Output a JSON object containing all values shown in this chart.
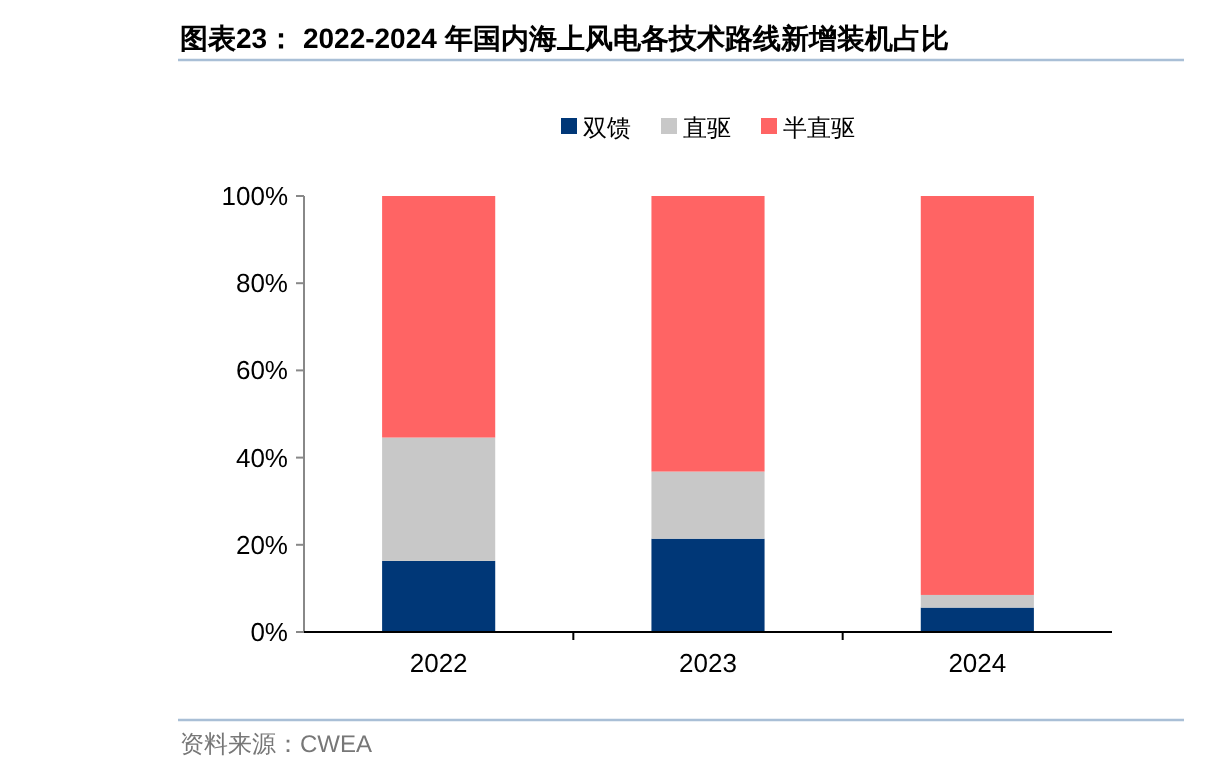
{
  "chart_data": {
    "type": "bar",
    "title": "图表23： 2022-2024 年国内海上风电各技术路线新增装机占比",
    "categories": [
      "2022",
      "2023",
      "2024"
    ],
    "stacked": true,
    "legend": "top",
    "series": [
      {
        "name": "双馈",
        "color": "#003777",
        "values": [
          16.3,
          21.4,
          5.6
        ]
      },
      {
        "name": "直驱",
        "color": "#c8c8c8",
        "values": [
          28.3,
          15.4,
          2.9
        ]
      },
      {
        "name": "半直驱",
        "color": "#ff6464",
        "values": [
          55.4,
          63.2,
          91.5
        ]
      }
    ],
    "ylim": [
      0,
      100
    ],
    "yticks": [
      {
        "value": 0,
        "label": "0%"
      },
      {
        "value": 20,
        "label": "20%"
      },
      {
        "value": 40,
        "label": "40%"
      },
      {
        "value": 60,
        "label": "60%"
      },
      {
        "value": 80,
        "label": "80%"
      },
      {
        "value": 100,
        "label": "100%"
      }
    ],
    "grid": false,
    "annotations": [
      "资料来源：CWEA"
    ]
  }
}
